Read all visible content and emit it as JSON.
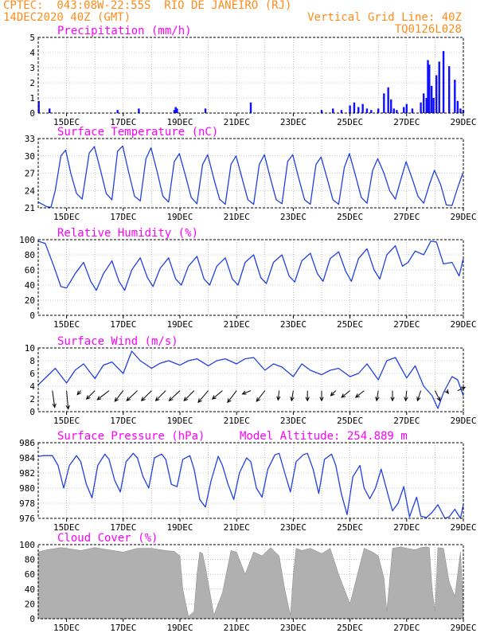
{
  "header": {
    "line1_left": "CPTEC:  043:08W-22:55S  RIO DE JANEIRO (RJ)",
    "line2_left": "14DEC2020 40Z (GMT)",
    "line2_right": "Vertical Grid Line: 40Z",
    "line3_right": "TQ0126L028"
  },
  "colors": {
    "header_text": "#ff8c1a",
    "panel_title": "#ff00ff",
    "series_line": "#2040e0",
    "precip_bar": "#1010ff",
    "cloud_fill": "#b0b0b0",
    "wind_arrow": "#000000",
    "grid": "#999999"
  },
  "x_axis": {
    "tick_labels": [
      "15DEC",
      "17DEC",
      "19DEC",
      "21DEC",
      "23DEC",
      "25DEC",
      "27DEC",
      "29DEC"
    ],
    "start_day": 14.0,
    "end_day": 29.0
  },
  "chart_data": [
    {
      "type": "bar",
      "title": "Precipitation (mm/h)",
      "ylim": [
        0,
        5
      ],
      "yticks": [
        0,
        1,
        2,
        3,
        4,
        5
      ],
      "x": [
        14.02,
        14.4,
        16.8,
        17.55,
        18.8,
        18.85,
        18.9,
        19.9,
        21.5,
        24.0,
        24.4,
        24.7,
        25.0,
        25.15,
        25.3,
        25.45,
        25.6,
        25.75,
        26.0,
        26.2,
        26.35,
        26.45,
        26.55,
        26.65,
        26.9,
        27.0,
        27.2,
        27.5,
        27.6,
        27.7,
        27.75,
        27.8,
        27.88,
        27.95,
        28.05,
        28.15,
        28.3,
        28.5,
        28.7,
        28.8,
        28.9,
        29.0
      ],
      "values": [
        0.8,
        0.3,
        0.2,
        0.3,
        0.2,
        0.4,
        0.3,
        0.3,
        0.7,
        0.2,
        0.3,
        0.2,
        0.5,
        0.7,
        0.4,
        0.6,
        0.3,
        0.2,
        0.3,
        1.3,
        1.7,
        0.9,
        0.3,
        0.2,
        0.4,
        0.6,
        0.3,
        0.7,
        1.3,
        1.0,
        3.5,
        3.2,
        1.8,
        1.0,
        2.5,
        3.4,
        4.1,
        3.1,
        2.2,
        0.8,
        0.3,
        0.2
      ]
    },
    {
      "type": "line",
      "title": "Surface Temperature (nC)",
      "ylim": [
        21,
        33
      ],
      "yticks": [
        21,
        24,
        27,
        30,
        33
      ],
      "x": [
        14.0,
        14.15,
        14.3,
        14.45,
        14.6,
        14.8,
        14.97,
        15.15,
        15.35,
        15.55,
        15.8,
        15.98,
        16.2,
        16.4,
        16.6,
        16.8,
        16.98,
        17.2,
        17.4,
        17.6,
        17.8,
        17.98,
        18.2,
        18.4,
        18.6,
        18.8,
        18.98,
        19.2,
        19.4,
        19.6,
        19.8,
        19.98,
        20.2,
        20.4,
        20.6,
        20.8,
        20.98,
        21.2,
        21.4,
        21.6,
        21.8,
        21.98,
        22.2,
        22.4,
        22.6,
        22.8,
        22.98,
        23.2,
        23.4,
        23.6,
        23.8,
        23.98,
        24.2,
        24.4,
        24.6,
        24.8,
        24.98,
        25.2,
        25.4,
        25.6,
        25.8,
        25.98,
        26.2,
        26.4,
        26.6,
        26.8,
        26.98,
        27.2,
        27.4,
        27.6,
        27.8,
        27.98,
        28.2,
        28.4,
        28.6,
        28.8,
        28.98
      ],
      "values": [
        22.0,
        21.6,
        21.2,
        21.1,
        24.0,
        30.0,
        31.0,
        27.0,
        23.5,
        22.5,
        30.5,
        31.6,
        27.5,
        23.5,
        22.4,
        30.8,
        31.7,
        27.0,
        23.0,
        22.2,
        29.5,
        31.4,
        27.2,
        23.0,
        22.0,
        29.0,
        30.4,
        26.5,
        22.8,
        21.7,
        28.5,
        30.2,
        26.0,
        22.5,
        21.6,
        28.5,
        30.0,
        26.0,
        22.4,
        21.6,
        28.5,
        30.2,
        26.0,
        22.4,
        21.7,
        29.0,
        30.2,
        26.0,
        22.4,
        21.6,
        28.5,
        29.8,
        26.0,
        22.4,
        21.6,
        28.0,
        30.4,
        26.5,
        22.8,
        21.8,
        27.5,
        29.5,
        27.0,
        24.0,
        22.5,
        26.0,
        29.0,
        26.0,
        23.0,
        21.8,
        25.0,
        27.5,
        25.0,
        21.5,
        21.4,
        24.5,
        27.0
      ]
    },
    {
      "type": "line",
      "title": "Relative Humidity (%)",
      "ylim": [
        0,
        100
      ],
      "yticks": [
        0,
        20,
        40,
        60,
        80,
        100
      ],
      "x": [
        14.0,
        14.25,
        14.55,
        14.8,
        15.0,
        15.3,
        15.6,
        15.85,
        16.05,
        16.3,
        16.6,
        16.85,
        17.05,
        17.3,
        17.6,
        17.85,
        18.05,
        18.3,
        18.6,
        18.85,
        19.05,
        19.3,
        19.6,
        19.85,
        20.05,
        20.3,
        20.6,
        20.85,
        21.05,
        21.3,
        21.6,
        21.85,
        22.05,
        22.3,
        22.6,
        22.85,
        23.05,
        23.3,
        23.6,
        23.85,
        24.05,
        24.3,
        24.6,
        24.85,
        25.05,
        25.3,
        25.6,
        25.85,
        26.05,
        26.3,
        26.6,
        26.85,
        27.05,
        27.3,
        27.6,
        27.85,
        28.05,
        28.3,
        28.6,
        28.85,
        29.0
      ],
      "values": [
        98,
        95,
        65,
        38,
        36,
        55,
        70,
        45,
        33,
        55,
        72,
        45,
        33,
        60,
        76,
        50,
        38,
        62,
        76,
        48,
        40,
        65,
        78,
        48,
        40,
        65,
        76,
        48,
        40,
        70,
        80,
        50,
        42,
        70,
        80,
        52,
        44,
        72,
        82,
        55,
        45,
        75,
        84,
        58,
        45,
        75,
        88,
        60,
        48,
        80,
        92,
        65,
        70,
        85,
        80,
        98,
        97,
        68,
        70,
        52,
        75
      ]
    },
    {
      "type": "line",
      "title": "Surface Wind (m/s)",
      "ylim": [
        0,
        10
      ],
      "yticks": [
        0,
        2,
        4,
        6,
        8,
        10
      ],
      "x": [
        14.0,
        14.3,
        14.6,
        15.0,
        15.3,
        15.6,
        16.0,
        16.3,
        16.6,
        17.0,
        17.3,
        17.6,
        18.0,
        18.3,
        18.6,
        19.0,
        19.3,
        19.6,
        20.0,
        20.3,
        20.6,
        21.0,
        21.3,
        21.6,
        22.0,
        22.3,
        22.6,
        23.0,
        23.3,
        23.6,
        24.0,
        24.3,
        24.6,
        25.0,
        25.3,
        25.6,
        26.0,
        26.3,
        26.6,
        27.0,
        27.3,
        27.6,
        27.9,
        28.1,
        28.3,
        28.6,
        28.8,
        29.0
      ],
      "values": [
        4.2,
        5.5,
        6.8,
        4.5,
        6.5,
        7.5,
        5.2,
        7.3,
        7.8,
        6.0,
        9.5,
        8.0,
        6.8,
        7.6,
        8.0,
        7.3,
        8.0,
        8.3,
        7.2,
        8.0,
        8.3,
        7.5,
        8.3,
        8.5,
        6.5,
        7.5,
        7.0,
        5.5,
        7.5,
        6.5,
        5.8,
        6.5,
        6.8,
        5.5,
        6.0,
        7.5,
        5.0,
        8.0,
        8.5,
        5.3,
        7.2,
        4.0,
        2.5,
        0.5,
        3.0,
        5.5,
        5.0,
        2.5
      ],
      "wind_barbs": [
        {
          "day": 14.5,
          "u": 0.7,
          "v": 5.0
        },
        {
          "day": 15.0,
          "u": 0.5,
          "v": 5.5
        },
        {
          "day": 15.5,
          "u": -1.0,
          "v": 1.2
        },
        {
          "day": 16.0,
          "u": -2.5,
          "v": 2.5
        },
        {
          "day": 16.5,
          "u": -3.5,
          "v": 2.7
        },
        {
          "day": 17.0,
          "u": -2.5,
          "v": 3.2
        },
        {
          "day": 17.5,
          "u": -3.2,
          "v": 3.0
        },
        {
          "day": 18.0,
          "u": -3.0,
          "v": 3.0
        },
        {
          "day": 18.5,
          "u": -3.0,
          "v": 3.0
        },
        {
          "day": 19.0,
          "u": -3.2,
          "v": 3.0
        },
        {
          "day": 19.5,
          "u": -3.0,
          "v": 3.0
        },
        {
          "day": 20.0,
          "u": -3.0,
          "v": 3.5
        },
        {
          "day": 20.5,
          "u": -3.0,
          "v": 2.5
        },
        {
          "day": 21.0,
          "u": -2.7,
          "v": 3.5
        },
        {
          "day": 21.5,
          "u": -2.5,
          "v": 1.0
        },
        {
          "day": 22.0,
          "u": -2.5,
          "v": 3.2
        },
        {
          "day": 22.5,
          "u": -0.3,
          "v": 2.8
        },
        {
          "day": 23.0,
          "u": -0.5,
          "v": 3.0
        },
        {
          "day": 23.5,
          "u": 0.0,
          "v": 3.0
        },
        {
          "day": 24.0,
          "u": 0.0,
          "v": 3.0
        },
        {
          "day": 24.5,
          "u": -1.5,
          "v": 1.5
        },
        {
          "day": 25.0,
          "u": -2.5,
          "v": 2.0
        },
        {
          "day": 25.5,
          "u": -2.5,
          "v": 2.0
        },
        {
          "day": 26.0,
          "u": -0.5,
          "v": 3.0
        },
        {
          "day": 26.5,
          "u": 0.0,
          "v": 3.0
        },
        {
          "day": 27.0,
          "u": -0.3,
          "v": 3.0
        },
        {
          "day": 27.5,
          "u": -1.0,
          "v": 3.0
        },
        {
          "day": 28.0,
          "u": 1.5,
          "v": 3.0
        },
        {
          "day": 28.4,
          "u": 0.6,
          "v": 0.8
        },
        {
          "day": 28.8,
          "u": 2.2,
          "v": -1.0
        }
      ]
    },
    {
      "type": "line",
      "title": "Surface Pressure (hPa)",
      "annotation": "Model Altitude: 254.889 m",
      "ylim": [
        976,
        986
      ],
      "yticks": [
        976,
        978,
        980,
        982,
        984,
        986
      ],
      "x": [
        14.0,
        14.2,
        14.5,
        14.7,
        14.9,
        15.1,
        15.35,
        15.5,
        15.7,
        15.9,
        16.1,
        16.35,
        16.5,
        16.7,
        16.9,
        17.1,
        17.35,
        17.5,
        17.7,
        17.9,
        18.1,
        18.35,
        18.5,
        18.7,
        18.9,
        19.1,
        19.35,
        19.5,
        19.7,
        19.9,
        20.1,
        20.35,
        20.5,
        20.7,
        20.9,
        21.1,
        21.35,
        21.5,
        21.7,
        21.9,
        22.1,
        22.35,
        22.5,
        22.7,
        22.9,
        23.1,
        23.35,
        23.5,
        23.7,
        23.9,
        24.1,
        24.35,
        24.5,
        24.7,
        24.9,
        25.1,
        25.35,
        25.5,
        25.7,
        25.9,
        26.1,
        26.35,
        26.5,
        26.7,
        26.9,
        27.1,
        27.35,
        27.5,
        27.7,
        27.9,
        28.1,
        28.35,
        28.5,
        28.7,
        28.9,
        29.0
      ],
      "values": [
        984.2,
        984.3,
        984.3,
        983.0,
        980.0,
        983.0,
        984.3,
        983.5,
        980.5,
        978.7,
        983.0,
        984.5,
        983.8,
        981.0,
        979.5,
        983.5,
        984.6,
        984.0,
        981.5,
        980.0,
        984.0,
        984.5,
        983.8,
        980.5,
        980.2,
        983.8,
        984.3,
        982.5,
        978.5,
        977.5,
        981.0,
        984.2,
        983.0,
        980.5,
        978.5,
        982.0,
        984.0,
        983.5,
        980.0,
        978.8,
        982.5,
        984.4,
        984.6,
        982.0,
        979.5,
        983.5,
        984.4,
        984.6,
        982.5,
        979.3,
        983.8,
        984.5,
        983.0,
        979.2,
        976.5,
        981.5,
        983.0,
        980.0,
        978.6,
        980.0,
        982.5,
        979.0,
        977.0,
        978.0,
        980.2,
        976.2,
        978.8,
        976.3,
        976.1,
        976.8,
        977.8,
        976.0,
        976.2,
        977.2,
        976.0,
        977.8
      ]
    },
    {
      "type": "area",
      "title": "Cloud Cover (%)",
      "ylim": [
        0,
        100
      ],
      "yticks": [
        0,
        20,
        40,
        60,
        80,
        100
      ],
      "x": [
        14.0,
        14.3,
        14.8,
        15.0,
        15.5,
        16.0,
        16.5,
        17.0,
        17.5,
        18.0,
        18.5,
        18.8,
        19.0,
        19.1,
        19.3,
        19.5,
        19.6,
        19.7,
        19.8,
        19.9,
        20.2,
        20.5,
        20.8,
        21.0,
        21.3,
        21.6,
        21.9,
        22.2,
        22.5,
        22.7,
        22.9,
        23.0,
        23.1,
        23.3,
        23.6,
        24.0,
        24.3,
        24.6,
        25.0,
        25.2,
        25.5,
        25.8,
        26.0,
        26.2,
        26.3,
        26.5,
        26.8,
        27.0,
        27.3,
        27.5,
        27.7,
        27.8,
        27.9,
        28.0,
        28.1,
        28.3,
        28.5,
        28.7,
        28.9,
        29.0
      ],
      "values": [
        90,
        93,
        96,
        95,
        92,
        96,
        93,
        90,
        95,
        95,
        92,
        91,
        85,
        40,
        3,
        10,
        60,
        90,
        88,
        70,
        5,
        35,
        92,
        90,
        60,
        90,
        85,
        96,
        85,
        40,
        5,
        60,
        95,
        92,
        95,
        88,
        95,
        60,
        20,
        50,
        95,
        90,
        85,
        55,
        10,
        95,
        97,
        95,
        93,
        96,
        97,
        96,
        40,
        10,
        96,
        95,
        50,
        30,
        90,
        20
      ]
    }
  ]
}
